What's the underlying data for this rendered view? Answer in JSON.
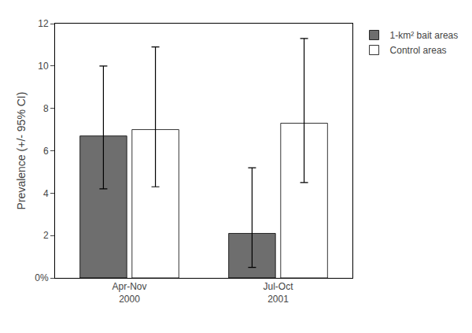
{
  "chart_data": {
    "type": "bar",
    "categories": [
      "Apr-Nov\n2000",
      "Jul-Oct\n2001"
    ],
    "series": [
      {
        "name": "1-km² bait areas",
        "color": "#6e6e6e",
        "values": [
          6.7,
          2.1
        ],
        "ci_lower": [
          4.2,
          0.5
        ],
        "ci_upper": [
          10.0,
          5.2
        ]
      },
      {
        "name": "Control areas",
        "color": "#ffffff",
        "values": [
          7.0,
          7.3
        ],
        "ci_lower": [
          4.3,
          4.5
        ],
        "ci_upper": [
          10.9,
          11.3
        ]
      }
    ],
    "ylabel": "Prevalence (+/- 95% CI)",
    "ylim": [
      0,
      12
    ],
    "yticks": [
      {
        "value": 0,
        "label": "0%"
      },
      2,
      4,
      6,
      8,
      10,
      12
    ],
    "grid": false,
    "legend": "right"
  }
}
